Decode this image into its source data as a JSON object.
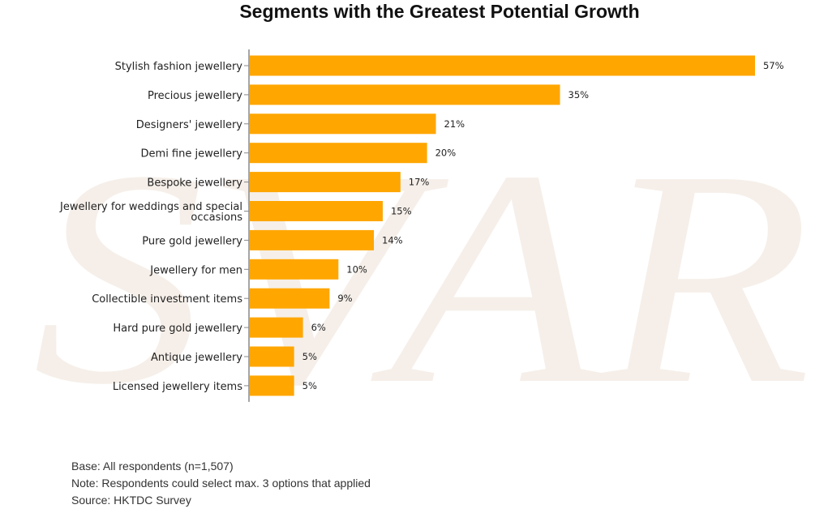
{
  "chart_data": {
    "type": "bar",
    "orientation": "horizontal",
    "title": "Segments with the Greatest Potential Growth",
    "categories": [
      "Stylish fashion jewellery",
      "Precious jewellery",
      "Designers' jewellery",
      "Demi fine jewellery",
      "Bespoke jewellery",
      "Jewellery for weddings and special occasions",
      "Pure gold jewellery",
      "Jewellery for men",
      "Collectible investment items",
      "Hard pure gold jewellery",
      "Antique jewellery",
      "Licensed jewellery items"
    ],
    "category_lines": [
      [
        "Stylish fashion jewellery"
      ],
      [
        "Precious jewellery"
      ],
      [
        "Designers' jewellery"
      ],
      [
        "Demi fine jewellery"
      ],
      [
        "Bespoke jewellery"
      ],
      [
        "Jewellery for weddings and special",
        "occasions"
      ],
      [
        "Pure gold jewellery"
      ],
      [
        "Jewellery for men"
      ],
      [
        "Collectible investment items"
      ],
      [
        "Hard pure gold jewellery"
      ],
      [
        "Antique jewellery"
      ],
      [
        "Licensed jewellery items"
      ]
    ],
    "values": [
      57,
      35,
      21,
      20,
      17,
      15,
      14,
      10,
      9,
      6,
      5,
      5
    ],
    "value_labels": [
      "57%",
      "35%",
      "21%",
      "20%",
      "17%",
      "15%",
      "14%",
      "10%",
      "9%",
      "6%",
      "5%",
      "5%"
    ],
    "unit": "%",
    "xlim": [
      0,
      57
    ],
    "bar_color": "#FFA600",
    "grid": false,
    "legend": "none"
  },
  "notes": [
    "Base: All respondents (n=1,507)",
    "Note: Respondents could select max. 3 options that applied",
    "Source: HKTDC Survey"
  ],
  "watermark_color": "#f6efe9"
}
